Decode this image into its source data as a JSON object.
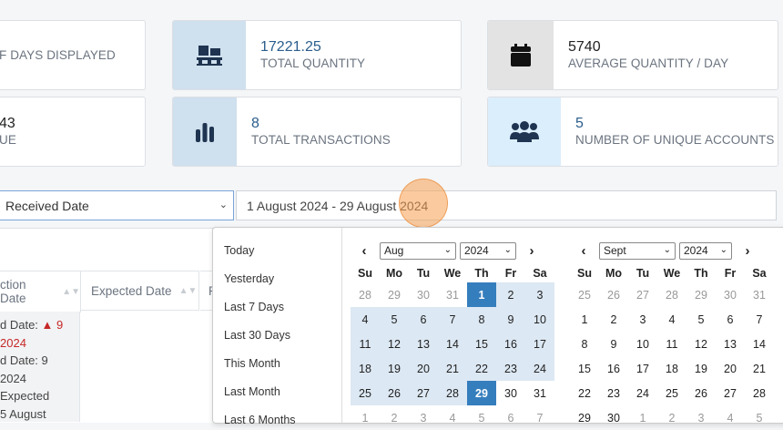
{
  "cards": [
    {
      "value": "",
      "label": "F DAYS DISPLAYED",
      "icon": "calendar-days-icon"
    },
    {
      "value": "17221.25",
      "label": "TOTAL QUANTITY",
      "icon": "pallet-icon"
    },
    {
      "value": "5740",
      "label": "AVERAGE QUANTITY / DAY",
      "icon": "calendar-icon"
    },
    {
      "value": "43",
      "label": "UE",
      "icon": ""
    },
    {
      "value": "8",
      "label": "TOTAL TRANSACTIONS",
      "icon": "bar-chart-icon"
    },
    {
      "value": "5",
      "label": "NUMBER OF UNIQUE ACCOUNTS",
      "icon": "users-icon"
    }
  ],
  "filter": {
    "date_type": "Received Date",
    "date_range": "1 August 2024 - 29 August 2024"
  },
  "table": {
    "headers": [
      "ction Date",
      "Expected Date",
      "R"
    ],
    "cell_lines": [
      "d Date: ",
      "9",
      " 2024",
      "d Date: 9",
      " 2024",
      " Expected",
      "5 August"
    ]
  },
  "ranges": [
    "Today",
    "Yesterday",
    "Last 7 Days",
    "Last 30 Days",
    "This Month",
    "Last Month",
    "Last 6 Months"
  ],
  "weekdays": [
    "Su",
    "Mo",
    "Tu",
    "We",
    "Th",
    "Fr",
    "Sa"
  ],
  "left_calendar": {
    "month": "Aug",
    "year": "2024",
    "weeks": [
      [
        "28",
        "29",
        "30",
        "31",
        "1",
        "2",
        "3"
      ],
      [
        "4",
        "5",
        "6",
        "7",
        "8",
        "9",
        "10"
      ],
      [
        "11",
        "12",
        "13",
        "14",
        "15",
        "16",
        "17"
      ],
      [
        "18",
        "19",
        "20",
        "21",
        "22",
        "23",
        "24"
      ],
      [
        "25",
        "26",
        "27",
        "28",
        "29",
        "30",
        "31"
      ],
      [
        "1",
        "2",
        "3",
        "4",
        "5",
        "6",
        "7"
      ]
    ]
  },
  "right_calendar": {
    "month": "Sept",
    "year": "2024",
    "weeks": [
      [
        "25",
        "26",
        "27",
        "28",
        "29",
        "30",
        "31"
      ],
      [
        "1",
        "2",
        "3",
        "4",
        "5",
        "6",
        "7"
      ],
      [
        "8",
        "9",
        "10",
        "11",
        "12",
        "13",
        "14"
      ],
      [
        "15",
        "16",
        "17",
        "18",
        "19",
        "20",
        "21"
      ],
      [
        "22",
        "23",
        "24",
        "25",
        "26",
        "27",
        "28"
      ],
      [
        "29",
        "30",
        "1",
        "2",
        "3",
        "4",
        "5"
      ]
    ]
  },
  "colors": {
    "accent": "#357ebd",
    "range": "#dce8f3",
    "icon_bg_blue": "#cfe0ee",
    "icon_bg_gray": "#e3e3e3",
    "warning": "#c62828"
  }
}
